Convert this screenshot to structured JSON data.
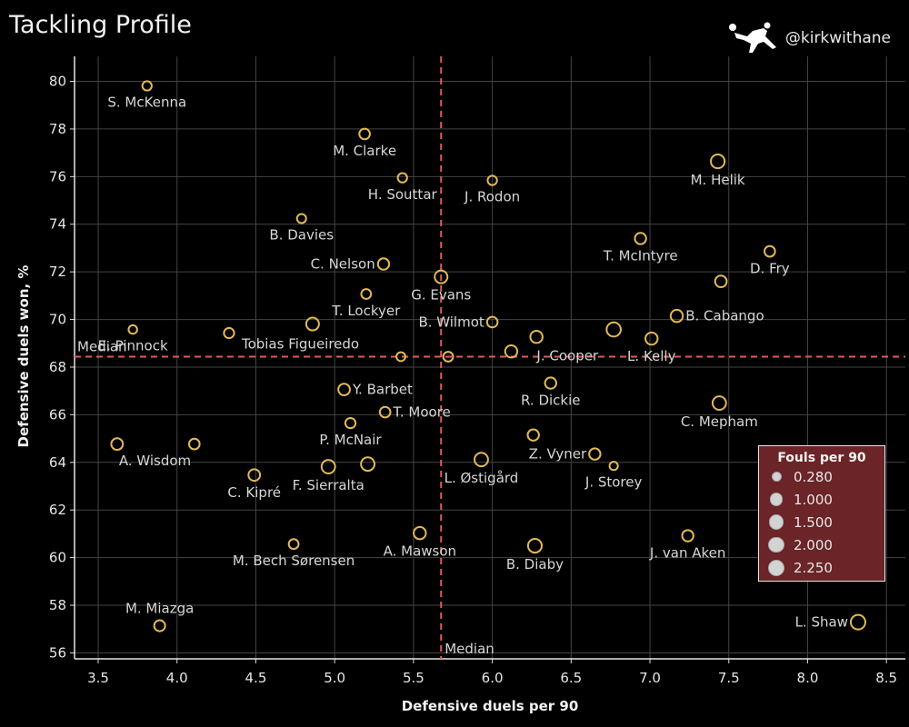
{
  "header": {
    "title": "Tackling Profile",
    "handle": "@kirkwithane",
    "logo_icon": "bicycle-kick-player-icon"
  },
  "chart_data": {
    "type": "scatter",
    "title": "Tackling Profile",
    "xlabel": "Defensive duels per 90",
    "ylabel": "Defensive duels won, %",
    "xlim": [
      3.35,
      8.62
    ],
    "ylim": [
      55.75,
      81.05
    ],
    "xticks": [
      "3.5",
      "4.0",
      "4.5",
      "5.0",
      "5.5",
      "6.0",
      "6.5",
      "7.0",
      "7.5",
      "8.0",
      "8.5"
    ],
    "yticks": [
      "56",
      "58",
      "60",
      "62",
      "64",
      "66",
      "68",
      "70",
      "72",
      "74",
      "76",
      "78",
      "80"
    ],
    "grid": true,
    "marker_color": "#e3b956",
    "median_color": "#e05a5a",
    "median": {
      "x": 5.675,
      "y": 68.44,
      "x_label": "Median",
      "y_label": "Median"
    },
    "size_legend": {
      "title": "Fouls per 90",
      "placement": "bottom-right",
      "entries": [
        {
          "value": 0.28,
          "label": "0.280"
        },
        {
          "value": 1.0,
          "label": "1.000"
        },
        {
          "value": 1.5,
          "label": "1.500"
        },
        {
          "value": 2.0,
          "label": "2.000"
        },
        {
          "value": 2.25,
          "label": "2.250"
        }
      ]
    },
    "points": [
      {
        "name": "S. McKenna",
        "x": 3.81,
        "y": 79.81,
        "fouls": 0.5,
        "label_pos": "below"
      },
      {
        "name": "M. Clarke",
        "x": 5.19,
        "y": 77.79,
        "fouls": 0.8,
        "label_pos": "below"
      },
      {
        "name": "H. Souttar",
        "x": 5.43,
        "y": 75.95,
        "fouls": 0.5,
        "label_pos": "below"
      },
      {
        "name": "J. Rodon",
        "x": 6.0,
        "y": 75.84,
        "fouls": 0.5,
        "label_pos": "below"
      },
      {
        "name": "M. Helik",
        "x": 7.43,
        "y": 76.64,
        "fouls": 1.9,
        "label_pos": "below"
      },
      {
        "name": "B. Davies",
        "x": 4.79,
        "y": 74.24,
        "fouls": 0.45,
        "label_pos": "below"
      },
      {
        "name": "T. McIntyre",
        "x": 6.94,
        "y": 73.4,
        "fouls": 1.0,
        "label_pos": "below"
      },
      {
        "name": "D. Fry",
        "x": 7.76,
        "y": 72.86,
        "fouls": 0.8,
        "label_pos": "below"
      },
      {
        "name": "C. Nelson",
        "x": 5.31,
        "y": 72.33,
        "fouls": 1.0,
        "label_pos": "left"
      },
      {
        "name": "G. Evans",
        "x": 5.675,
        "y": 71.79,
        "fouls": 1.5,
        "label_pos": "below"
      },
      {
        "name": "",
        "x": 7.45,
        "y": 71.6,
        "fouls": 1.1,
        "label_pos": "none"
      },
      {
        "name": "T. Lockyer",
        "x": 5.2,
        "y": 71.07,
        "fouls": 0.6,
        "label_pos": "below"
      },
      {
        "name": "B. Cabango",
        "x": 7.17,
        "y": 70.15,
        "fouls": 1.3,
        "label_pos": "right"
      },
      {
        "name": "B. Wilmot",
        "x": 6.0,
        "y": 69.89,
        "fouls": 0.8,
        "label_pos": "left"
      },
      {
        "name": "",
        "x": 4.86,
        "y": 69.81,
        "fouls": 1.5,
        "label_pos": "none"
      },
      {
        "name": "",
        "x": 6.77,
        "y": 69.58,
        "fouls": 2.1,
        "label_pos": "none"
      },
      {
        "name": "E. Pinnock",
        "x": 3.72,
        "y": 69.58,
        "fouls": 0.35,
        "label_pos": "below"
      },
      {
        "name": "Tobias Figueiredo",
        "x": 4.33,
        "y": 69.43,
        "fouls": 0.7,
        "label_pos": "below-right"
      },
      {
        "name": "",
        "x": 6.28,
        "y": 69.27,
        "fouls": 1.3,
        "label_pos": "none"
      },
      {
        "name": "L. Kelly",
        "x": 7.01,
        "y": 69.2,
        "fouls": 1.3,
        "label_pos": "below"
      },
      {
        "name": "J. Cooper",
        "x": 6.12,
        "y": 68.66,
        "fouls": 1.3,
        "label_pos": "below-right"
      },
      {
        "name": "",
        "x": 5.42,
        "y": 68.44,
        "fouls": 0.4,
        "label_pos": "none"
      },
      {
        "name": "",
        "x": 5.72,
        "y": 68.44,
        "fouls": 0.6,
        "label_pos": "none"
      },
      {
        "name": "R. Dickie",
        "x": 6.37,
        "y": 67.33,
        "fouls": 1.0,
        "label_pos": "below"
      },
      {
        "name": "Y. Barbet",
        "x": 5.06,
        "y": 67.06,
        "fouls": 1.1,
        "label_pos": "right"
      },
      {
        "name": "C. Mepham",
        "x": 7.44,
        "y": 66.49,
        "fouls": 1.8,
        "label_pos": "below"
      },
      {
        "name": "T. Moore",
        "x": 5.32,
        "y": 66.11,
        "fouls": 0.8,
        "label_pos": "right"
      },
      {
        "name": "P. McNair",
        "x": 5.1,
        "y": 65.65,
        "fouls": 0.7,
        "label_pos": "below"
      },
      {
        "name": "",
        "x": 6.26,
        "y": 65.15,
        "fouls": 1.0,
        "label_pos": "none"
      },
      {
        "name": "A. Wisdom",
        "x": 3.62,
        "y": 64.77,
        "fouls": 1.1,
        "label_pos": "below-right"
      },
      {
        "name": "",
        "x": 4.11,
        "y": 64.77,
        "fouls": 0.8,
        "label_pos": "none"
      },
      {
        "name": "Z. Vyner",
        "x": 6.65,
        "y": 64.35,
        "fouls": 1.0,
        "label_pos": "left"
      },
      {
        "name": "L. Østigård",
        "x": 5.93,
        "y": 64.12,
        "fouls": 1.8,
        "label_pos": "below"
      },
      {
        "name": "",
        "x": 5.21,
        "y": 63.93,
        "fouls": 1.8,
        "label_pos": "none"
      },
      {
        "name": "J. Storey",
        "x": 6.77,
        "y": 63.85,
        "fouls": 0.3,
        "label_pos": "below"
      },
      {
        "name": "F. Sierralta",
        "x": 4.96,
        "y": 63.82,
        "fouls": 1.8,
        "label_pos": "below"
      },
      {
        "name": "C. Kipré",
        "x": 4.49,
        "y": 63.47,
        "fouls": 1.1,
        "label_pos": "below"
      },
      {
        "name": "A. Mawson",
        "x": 5.54,
        "y": 61.03,
        "fouls": 1.3,
        "label_pos": "below"
      },
      {
        "name": "J. van Aken",
        "x": 7.24,
        "y": 60.92,
        "fouls": 1.0,
        "label_pos": "below"
      },
      {
        "name": "M. Bech Sørensen",
        "x": 4.74,
        "y": 60.57,
        "fouls": 0.6,
        "label_pos": "below"
      },
      {
        "name": "B. Diaby",
        "x": 6.27,
        "y": 60.5,
        "fouls": 1.9,
        "label_pos": "below"
      },
      {
        "name": "L. Shaw",
        "x": 8.32,
        "y": 57.29,
        "fouls": 2.25,
        "label_pos": "left"
      },
      {
        "name": "M. Miazga",
        "x": 3.89,
        "y": 57.14,
        "fouls": 0.9,
        "label_pos": "above"
      }
    ]
  }
}
